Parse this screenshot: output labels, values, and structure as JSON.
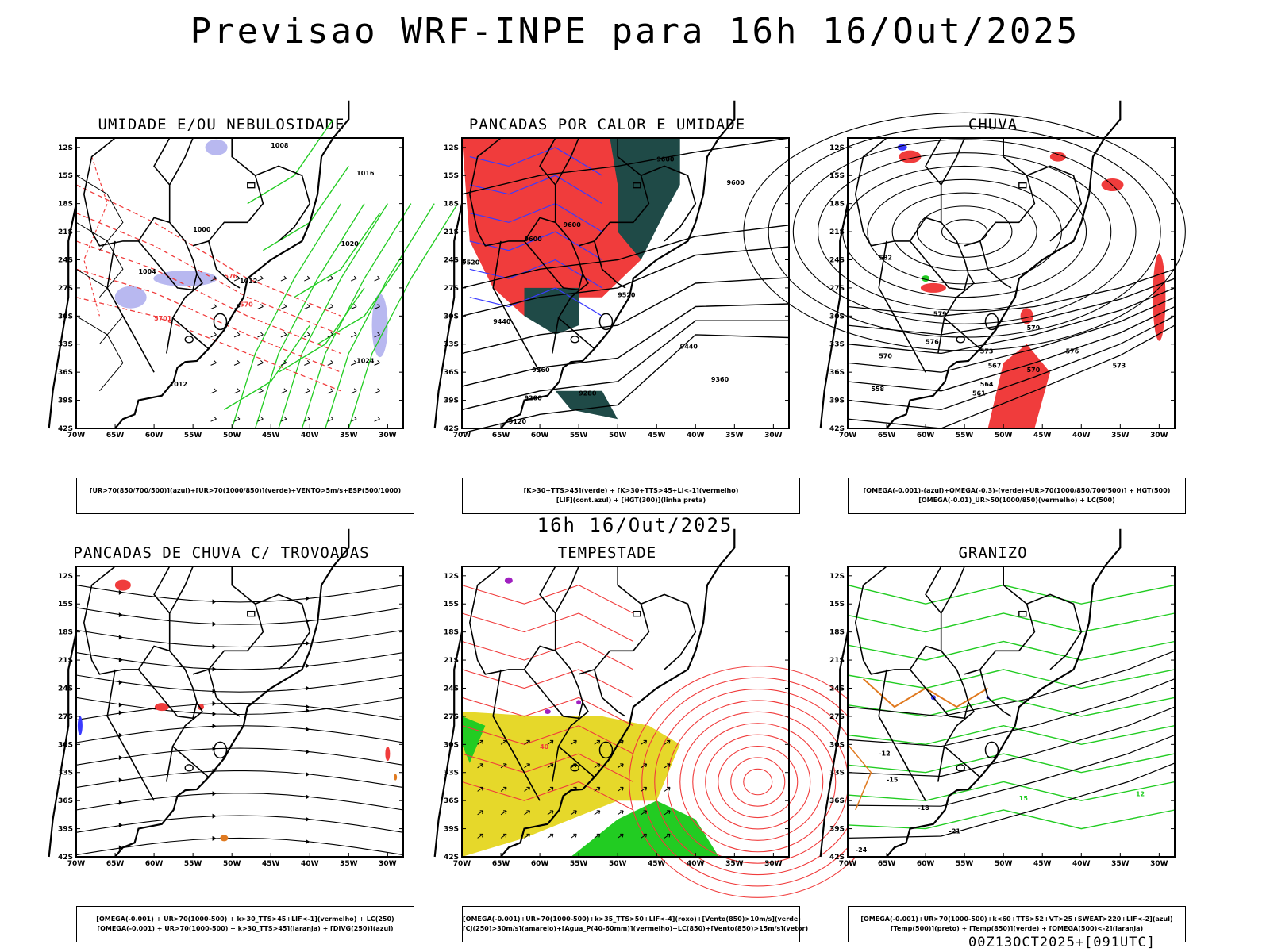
{
  "header": {
    "title": "Previsao WRF-INPE  para 16h 16/Out/2025",
    "mid_title": "16h 16/Out/2025",
    "footer": "00Z13OCT2025+[091UTC]"
  },
  "axes": {
    "lat_labels": [
      "12S",
      "15S",
      "18S",
      "21S",
      "24S",
      "27S",
      "30S",
      "33S",
      "36S",
      "39S",
      "42S"
    ],
    "lon_labels": [
      "70W",
      "65W",
      "60W",
      "55W",
      "50W",
      "45W",
      "40W",
      "35W",
      "30W"
    ]
  },
  "colors": {
    "red": "#f03c3c",
    "green": "#22cc22",
    "blue": "#3a3aff",
    "dark_teal": "#1f4a47",
    "lavender": "#b8b8f0",
    "yellow": "#e6d82a",
    "orange": "#e07a20",
    "purple": "#a020c0"
  },
  "panels": [
    {
      "title": "UMIDADE E/OU NEBULOSIDADE",
      "legend": [
        "[UR>70(850/700/500)](azul)+[UR>70(1000/850)](verde)+VENTO>5m/s+ESP(500/1000)"
      ],
      "contour_labels": [
        "1008",
        "1016",
        "1020",
        "1004",
        "1012",
        "1024",
        "1000",
        "5701",
        "576",
        "582",
        "570"
      ]
    },
    {
      "title": "PANCADAS POR CALOR E UMIDADE",
      "legend": [
        "[K>30+TTS>45](verde) + [K>30+TTS>45+LI<-1](vermelho)",
        "[LIF](cont.azul) + [HGT(300)](linha preta)"
      ],
      "contour_labels": [
        "9600",
        "9520",
        "9440",
        "9360",
        "9280",
        "9200",
        "9120"
      ]
    },
    {
      "title": "CHUVA",
      "legend": [
        "[OMEGA(-0.001)-(azul)+OMEGA(-0.3)-(verde)+UR>70(1000/850/700/500)] + HGT(500)",
        "[OMEGA(-0.01)_UR>50(1000/850)(vermelho) + LC(500)"
      ],
      "contour_labels": [
        "579",
        "576",
        "573",
        "570",
        "567",
        "564",
        "561",
        "582"
      ]
    },
    {
      "title": "PANCADAS DE CHUVA C/ TROVOADAS",
      "legend": [
        "[OMEGA(-0.001) + UR>70(1000-500) + k>30_TTS>45+LIF<-1](vermelho) + LC(250)",
        "[OMEGA(-0.001) + UR>70(1000-500) + k>30_TTS>45](laranja) + [DIVG(250)](azul)"
      ],
      "contour_labels": []
    },
    {
      "title": "TEMPESTADE",
      "legend": [
        "[OMEGA(-0.001)+UR>70(1000-500)+k>35_TTS>50+LIF<-4](roxo)+[Vento(850)>10m/s](verde)",
        "[CJ(250)>30m/s](amarelo)+[Agua_P(40-60mm)](vermelho)+LC(850)+[Vento(850)>15m/s](vetor)"
      ],
      "contour_labels": [
        "40"
      ]
    },
    {
      "title": "GRANIZO",
      "legend": [
        "[OMEGA(-0.001)+UR>70(1000-500)+k<60+TTS>52+VT>25+SWEAT>220+LIF<-2](azul)",
        "[Temp(500)](preto) + [Temp(850)](verde) + [OMEGA(500)<-2](laranja)"
      ],
      "contour_labels": [
        "-12",
        "-15",
        "-18",
        "-21",
        "-24",
        "12",
        "15"
      ]
    }
  ]
}
